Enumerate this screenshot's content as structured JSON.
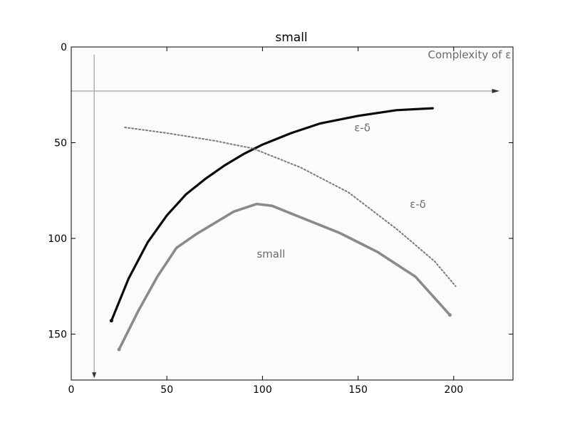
{
  "chart_data": {
    "type": "line",
    "title": "small",
    "xlabel": "",
    "ylabel": "",
    "xlim": [
      0,
      231
    ],
    "ylim": [
      0,
      174
    ],
    "y_inverted": true,
    "x_ticks": [
      0,
      50,
      100,
      150,
      200
    ],
    "y_ticks": [
      0,
      50,
      100,
      150
    ],
    "grid": false,
    "legend": "none",
    "colors": {
      "curve_dark": "#0a0a0a",
      "curve_gray": "#8a8a8a",
      "curve_dotted": "#7a7a7a",
      "axis_lines": "#b0b0b0",
      "plot_bg": "#fbfbfb"
    },
    "series": [
      {
        "x": [
          21,
          30,
          40,
          50,
          60,
          70,
          80,
          90,
          100,
          115,
          130,
          150,
          170,
          189
        ],
        "y": [
          143,
          121,
          102,
          88,
          77,
          69,
          62,
          56,
          51,
          45,
          40,
          36,
          33,
          32
        ]
      },
      {
        "x": [
          25,
          35,
          45,
          55,
          65,
          75,
          85,
          97,
          105,
          120,
          140,
          160,
          180,
          198
        ],
        "y": [
          158,
          138,
          120,
          105,
          98,
          92,
          86,
          82,
          83,
          89,
          97,
          107,
          120,
          140
        ]
      },
      {
        "x": [
          28,
          50,
          75,
          95,
          120,
          145,
          170,
          190,
          201
        ],
        "y": [
          42,
          45,
          49,
          53,
          63,
          76,
          95,
          112,
          125
        ]
      }
    ],
    "annotations": [
      {
        "text": "Complexity of ε",
        "x": 230,
        "y": 6
      },
      {
        "text": "small",
        "x": 97,
        "y": 110
      },
      {
        "text": "ε-δ",
        "x": 148,
        "y": 44
      },
      {
        "text": "ε-δ",
        "x": 177,
        "y": 84
      }
    ]
  }
}
